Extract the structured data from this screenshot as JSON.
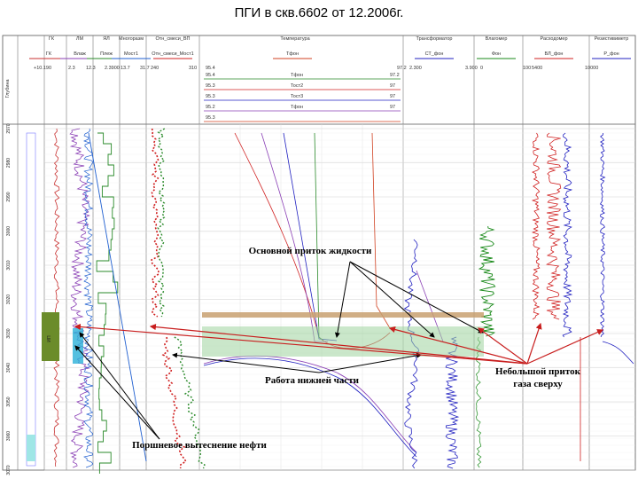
{
  "title": "ПГИ в скв.6602 от 12.2006г.",
  "chart_data": {
    "type": "well-log",
    "title": "ПГИ в скв.6602 от 12.2006г.",
    "depth_label": "Глубина",
    "depth_ticks": [
      "2970",
      "2980",
      "2990",
      "3000",
      "3010",
      "3020",
      "3030",
      "3040",
      "3050",
      "3060",
      "3070"
    ],
    "tracks": [
      {
        "name": "ГК",
        "scale_min": "-10.190",
        "scale_max": "",
        "curve": "ГК",
        "color": "#c83232"
      },
      {
        "name": "ЛМ",
        "scale_min": "2.3",
        "scale_max": "12.3",
        "curve": "Влаж",
        "color": "#8a3fb5"
      },
      {
        "name": "ЯЛ",
        "scale_min": "2.3",
        "scale_max": "12.3",
        "curve": "Плеж",
        "color": "#2a8a2a"
      },
      {
        "name": "Многоразм",
        "scale_min": "13.7",
        "scale_max": "31.7",
        "curve": "Мост1",
        "color": "#1f5fd0"
      },
      {
        "name": "Отн_смеси_ВП",
        "scale_min": "240",
        "scale_max": "310",
        "curve": "Отн_смеси_Мост1",
        "color": "#d02020"
      },
      {
        "name": "Температура",
        "scale_min": "95.4",
        "scale_max": "97.2",
        "curve": "Тфон",
        "color": "#d04020"
      },
      {
        "name": "Трансформатор",
        "scale_min": "2.300",
        "scale_max": "3.900",
        "curve": "СТ_фон",
        "color": "#2020c0"
      },
      {
        "name": "Влагомер",
        "scale_min": "0",
        "scale_max": "100",
        "curve": "Фон",
        "color": "#1a8a1a"
      },
      {
        "name": "Расходомер",
        "scale_min": "5400",
        "scale_max": "10000",
        "curve": "ВЛ_фон",
        "color": "#d02020"
      },
      {
        "name": "Резистивиметр",
        "scale_min": "",
        "scale_max": "",
        "curve": "Р_фон",
        "color": "#2020c0"
      }
    ],
    "header_values": [
      "+10.190",
      "2.3",
      "12.3",
      "2.3900",
      "13.7",
      "31.7",
      "240",
      "310",
      "95.4",
      "97.2",
      "2.300",
      "3.900",
      "0",
      "100",
      "5400",
      "10000"
    ],
    "temp_rows": [
      {
        "curve": "Тфон",
        "min": "95.4",
        "max": "97.2"
      },
      {
        "curve": "Тост2",
        "min": "95.3",
        "max": "97"
      },
      {
        "curve": "Тост3",
        "min": "95.3",
        "max": "97"
      },
      {
        "curve": "Тфон",
        "min": "95.2",
        "max": "97"
      },
      {
        "curve": "",
        "min": "95.3",
        "max": ""
      }
    ],
    "annotations": [
      {
        "text": "Основной приток жидкости"
      },
      {
        "text": "Работа нижней части"
      },
      {
        "text": "Небольшой приток газа сверху"
      },
      {
        "text": "Поршневое вытеснение нефти"
      }
    ],
    "perforation_interval_label": "ИП"
  }
}
